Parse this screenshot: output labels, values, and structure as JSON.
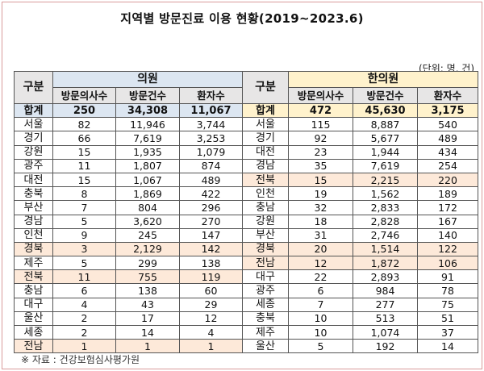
{
  "title": "지역별 방문진료 이용 현황(2019~2023.6)",
  "unit": "(단위: 명, 건)",
  "footer": "※ 자료 : 건강보험심사평가원",
  "clinic": {
    "group": "의원",
    "region_header": "구분",
    "columns": [
      "방문의사수",
      "방문건수",
      "환자수"
    ],
    "total": {
      "region": "합계",
      "values": [
        "250",
        "34,308",
        "11,067"
      ]
    },
    "rows": [
      {
        "region": "서울",
        "values": [
          "82",
          "11,946",
          "3,744"
        ],
        "highlight": false
      },
      {
        "region": "경기",
        "values": [
          "66",
          "7,619",
          "3,253"
        ],
        "highlight": false
      },
      {
        "region": "강원",
        "values": [
          "15",
          "1,935",
          "1,079"
        ],
        "highlight": false
      },
      {
        "region": "광주",
        "values": [
          "11",
          "1,807",
          "874"
        ],
        "highlight": false
      },
      {
        "region": "대전",
        "values": [
          "15",
          "1,067",
          "489"
        ],
        "highlight": false
      },
      {
        "region": "충북",
        "values": [
          "8",
          "1,869",
          "422"
        ],
        "highlight": false
      },
      {
        "region": "부산",
        "values": [
          "7",
          "804",
          "296"
        ],
        "highlight": false
      },
      {
        "region": "경남",
        "values": [
          "5",
          "3,620",
          "270"
        ],
        "highlight": false
      },
      {
        "region": "인천",
        "values": [
          "9",
          "245",
          "147"
        ],
        "highlight": false
      },
      {
        "region": "경북",
        "values": [
          "3",
          "2,129",
          "142"
        ],
        "highlight": true
      },
      {
        "region": "제주",
        "values": [
          "5",
          "299",
          "138"
        ],
        "highlight": false
      },
      {
        "region": "전북",
        "values": [
          "11",
          "755",
          "119"
        ],
        "highlight": true
      },
      {
        "region": "충남",
        "values": [
          "6",
          "138",
          "60"
        ],
        "highlight": false
      },
      {
        "region": "대구",
        "values": [
          "4",
          "43",
          "29"
        ],
        "highlight": false
      },
      {
        "region": "울산",
        "values": [
          "2",
          "17",
          "12"
        ],
        "highlight": false
      },
      {
        "region": "세종",
        "values": [
          "2",
          "14",
          "4"
        ],
        "highlight": false
      },
      {
        "region": "전남",
        "values": [
          "1",
          "1",
          "1"
        ],
        "highlight": true
      }
    ]
  },
  "korean_medicine": {
    "group": "한의원",
    "region_header": "구분",
    "columns": [
      "방문의사수",
      "방문건수",
      "환자수"
    ],
    "total": {
      "region": "합계",
      "values": [
        "472",
        "45,630",
        "3,175"
      ]
    },
    "rows": [
      {
        "region": "서울",
        "values": [
          "115",
          "8,887",
          "540"
        ],
        "highlight": false
      },
      {
        "region": "경기",
        "values": [
          "92",
          "5,677",
          "489"
        ],
        "highlight": false
      },
      {
        "region": "대전",
        "values": [
          "23",
          "1,944",
          "434"
        ],
        "highlight": false
      },
      {
        "region": "경남",
        "values": [
          "35",
          "7,619",
          "254"
        ],
        "highlight": false
      },
      {
        "region": "전북",
        "values": [
          "15",
          "2,215",
          "220"
        ],
        "highlight": true
      },
      {
        "region": "인천",
        "values": [
          "19",
          "1,562",
          "189"
        ],
        "highlight": false
      },
      {
        "region": "충남",
        "values": [
          "32",
          "2,833",
          "172"
        ],
        "highlight": false
      },
      {
        "region": "강원",
        "values": [
          "18",
          "2,828",
          "167"
        ],
        "highlight": false
      },
      {
        "region": "부산",
        "values": [
          "31",
          "2,746",
          "140"
        ],
        "highlight": false
      },
      {
        "region": "경북",
        "values": [
          "20",
          "1,514",
          "122"
        ],
        "highlight": true
      },
      {
        "region": "전남",
        "values": [
          "12",
          "1,872",
          "106"
        ],
        "highlight": true
      },
      {
        "region": "대구",
        "values": [
          "22",
          "2,893",
          "91"
        ],
        "highlight": false
      },
      {
        "region": "광주",
        "values": [
          "6",
          "984",
          "78"
        ],
        "highlight": false
      },
      {
        "region": "세종",
        "values": [
          "7",
          "277",
          "75"
        ],
        "highlight": false
      },
      {
        "region": "충북",
        "values": [
          "10",
          "513",
          "51"
        ],
        "highlight": false
      },
      {
        "region": "제주",
        "values": [
          "10",
          "1,074",
          "37"
        ],
        "highlight": false
      },
      {
        "region": "울산",
        "values": [
          "5",
          "192",
          "14"
        ],
        "highlight": false
      }
    ]
  },
  "colors": {
    "clinic_header": "#dce6f1",
    "km_header": "#fff2cc",
    "highlight": "#fde9d9",
    "subheader": "#e7e6e6"
  }
}
